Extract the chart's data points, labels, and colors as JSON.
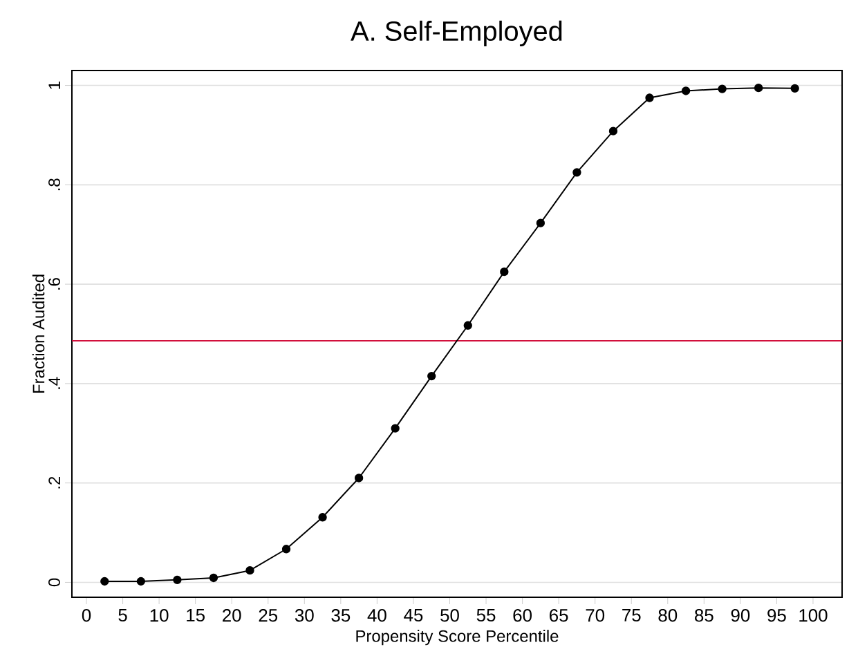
{
  "chart_data": {
    "type": "line",
    "title": "A. Self-Employed",
    "xlabel": "Propensity Score Percentile",
    "ylabel": "Fraction Audited",
    "x": [
      2.5,
      7.5,
      12.5,
      17.5,
      22.5,
      27.5,
      32.5,
      37.5,
      42.5,
      47.5,
      52.5,
      57.5,
      62.5,
      67.5,
      72.5,
      77.5,
      82.5,
      87.5,
      92.5,
      97.5
    ],
    "series": [
      {
        "color": "#000000",
        "values": [
          0.002,
          0.002,
          0.005,
          0.009,
          0.024,
          0.067,
          0.131,
          0.21,
          0.31,
          0.415,
          0.517,
          0.625,
          0.723,
          0.825,
          0.908,
          0.975,
          0.989,
          0.993,
          0.995,
          0.994
        ]
      }
    ],
    "marker": "circle",
    "line_style": "solid",
    "grid": "y",
    "xlim": [
      -2,
      104
    ],
    "ylim": [
      -0.03,
      1.03
    ],
    "xticks": [
      0,
      5,
      10,
      15,
      20,
      25,
      30,
      35,
      40,
      45,
      50,
      55,
      60,
      65,
      70,
      75,
      80,
      85,
      90,
      95,
      100
    ],
    "yticks": [
      {
        "value": 0,
        "label": "0"
      },
      {
        "value": 0.2,
        "label": ".2"
      },
      {
        "value": 0.4,
        "label": ".4"
      },
      {
        "value": 0.6,
        "label": ".6"
      },
      {
        "value": 0.8,
        "label": ".8"
      },
      {
        "value": 1,
        "label": "1"
      }
    ],
    "ref_lines": [
      {
        "axis": "y",
        "value": 0.486,
        "color": "#d2103c"
      }
    ]
  }
}
